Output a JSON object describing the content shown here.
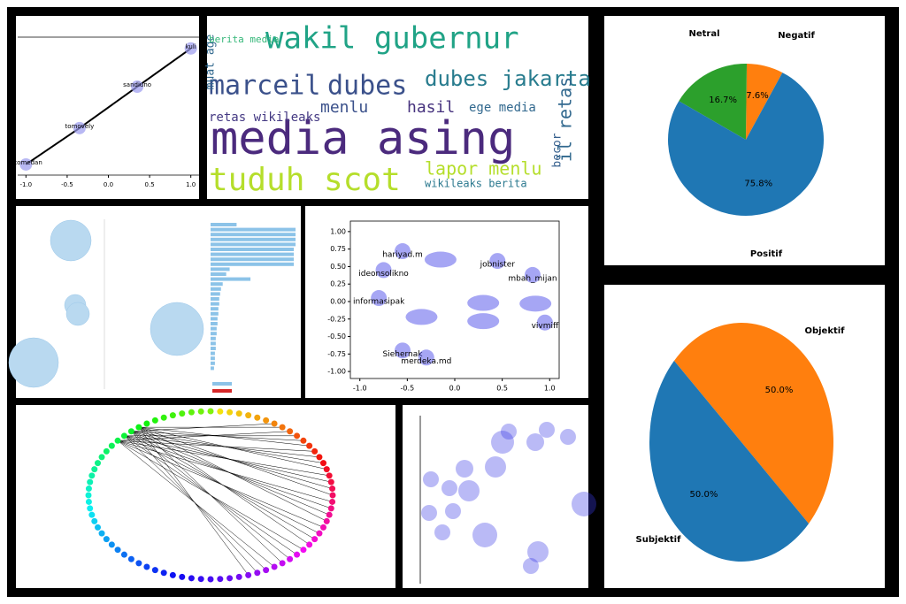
{
  "chart_data": [
    {
      "type": "line",
      "labels": [
        "istomedan",
        "tomovely",
        "sandiuno",
        "kuli"
      ],
      "x": [
        -1,
        -0.35,
        0.35,
        1
      ],
      "values": [
        -0.93,
        -0.35,
        0.31,
        0.92
      ],
      "xlim": [
        -1.1,
        1.1
      ],
      "ylim": [
        -1.1,
        1.1
      ],
      "xticks": [
        {
          "value": -1,
          "label": "-1.0"
        },
        {
          "value": -0.5,
          "label": "-0.5"
        },
        {
          "value": 0,
          "label": "0.0"
        },
        {
          "value": 0.5,
          "label": "0.5"
        },
        {
          "value": 1,
          "label": "1.0"
        }
      ],
      "color": "#000000",
      "marker_color": "#9a9aee"
    },
    {
      "type": "wordcloud",
      "words": [
        "wakil gubernur",
        "marceil",
        "dubes",
        "dubes jakarta",
        "menlu",
        "hasil",
        "media asing",
        "tuduh scot",
        "lapor menlu",
        "retas wikileaks",
        "ege media",
        "il retas",
        "muat age",
        "berita media",
        "wikileaks berita",
        "becor"
      ]
    },
    {
      "type": "pie",
      "categories": [
        "Negatif",
        "Netral",
        "Positif"
      ],
      "values": [
        7.6,
        16.7,
        75.8
      ],
      "value_labels": [
        "7.6%",
        "16.7%",
        "75.8%"
      ],
      "colors": [
        "#ff7f0e",
        "#2ca02c",
        "#1f77b4"
      ]
    },
    {
      "type": "bar",
      "orientation": "horizontal",
      "values": [
        30,
        98,
        98,
        98,
        98,
        96,
        96,
        96,
        96,
        22,
        18,
        46,
        14,
        12,
        11,
        10,
        10,
        9,
        9,
        8,
        8,
        7,
        7,
        6,
        6,
        6,
        5,
        5,
        5,
        4
      ],
      "xlim": [
        0,
        100
      ],
      "color": "#8cc3e8"
    },
    {
      "type": "scatter",
      "labels": [
        "hariyad.m",
        "jobnister",
        "mbah_mijan",
        "ideonsolikno",
        "informasipak",
        "vivmiff",
        "Siehernak",
        "merdeka.md",
        null,
        null,
        null,
        null,
        null
      ],
      "x": [
        -0.55,
        0.45,
        0.82,
        -0.75,
        -0.8,
        0.95,
        -0.55,
        -0.3,
        -0.15,
        0.3,
        -0.35,
        0.85,
        0.3
      ],
      "values": [
        0.72,
        0.58,
        0.38,
        0.45,
        0.05,
        -0.3,
        -0.7,
        -0.8,
        0.6,
        -0.28,
        -0.22,
        -0.03,
        -0.02
      ],
      "xlim": [
        -1.1,
        1.1
      ],
      "ylim": [
        -1.1,
        1.15
      ],
      "xticks": [
        {
          "value": -1,
          "label": "-1.0"
        },
        {
          "value": -0.5,
          "label": "-0.5"
        },
        {
          "value": 0,
          "label": "0.0"
        },
        {
          "value": 0.5,
          "label": "0.5"
        },
        {
          "value": 1,
          "label": "1.0"
        }
      ],
      "yticks": [
        {
          "value": -1,
          "label": "-1.00"
        },
        {
          "value": -0.75,
          "label": "-0.75"
        },
        {
          "value": -0.5,
          "label": "-0.50"
        },
        {
          "value": -0.25,
          "label": "-0.25"
        },
        {
          "value": 0,
          "label": "0.00"
        },
        {
          "value": 0.25,
          "label": "0.25"
        },
        {
          "value": 0.5,
          "label": "0.50"
        },
        {
          "value": 0.75,
          "label": "0.75"
        },
        {
          "value": 1,
          "label": "1.00"
        }
      ],
      "color": "#3a3ae6"
    },
    {
      "type": "pie",
      "categories": [
        "Objektif",
        "Subjektif"
      ],
      "values": [
        50,
        50
      ],
      "value_labels": [
        "50.0%",
        "50.0%"
      ],
      "colors": [
        "#ff7f0e",
        "#1f77b4"
      ]
    }
  ]
}
